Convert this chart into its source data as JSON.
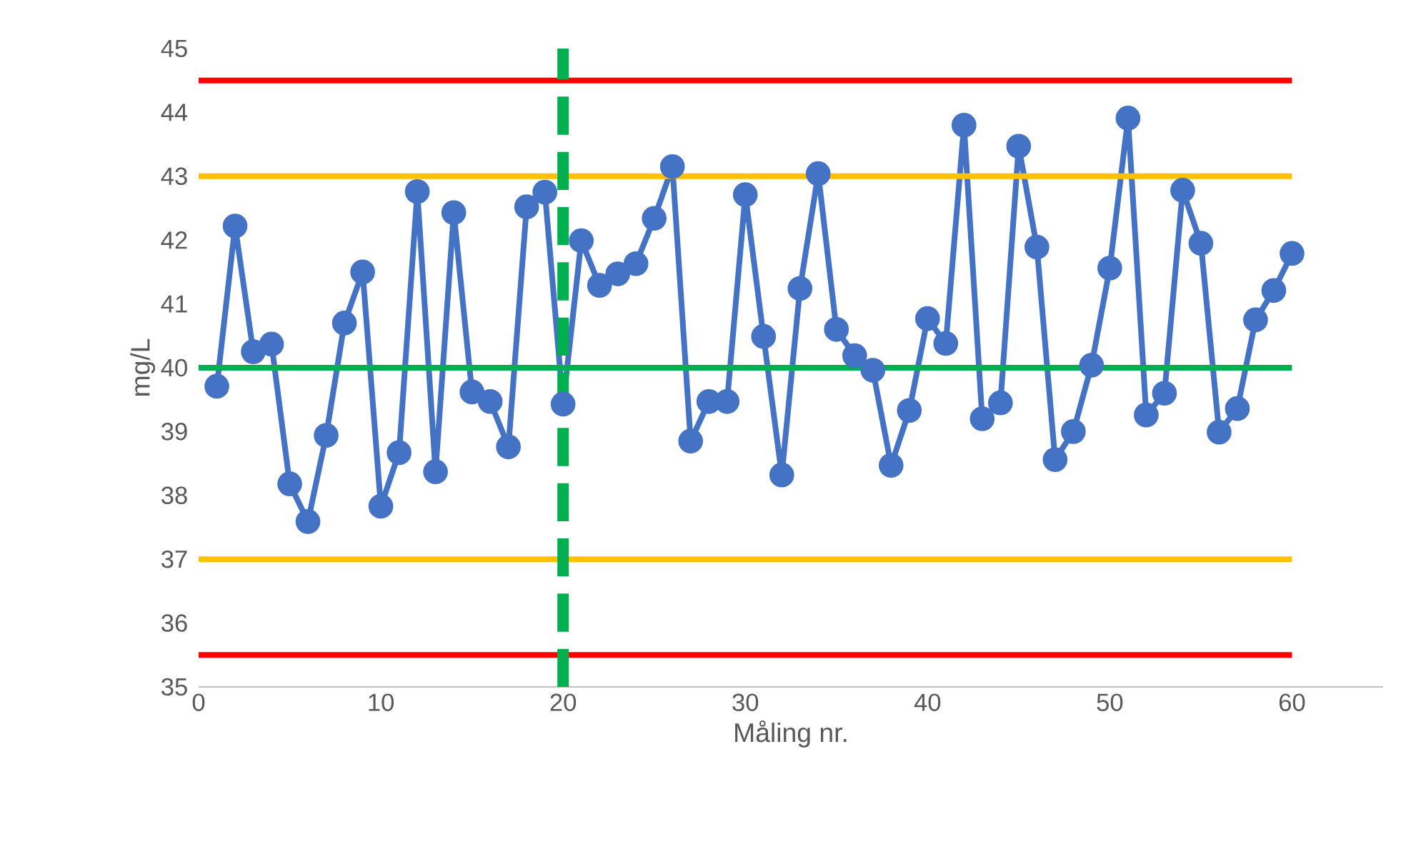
{
  "chart_data": {
    "type": "line",
    "xlabel": "Måling nr.",
    "ylabel": "mg/L",
    "xlim": [
      0,
      65
    ],
    "xticks": [
      0,
      10,
      20,
      30,
      40,
      50,
      60
    ],
    "ylim": [
      35,
      45
    ],
    "yticks": [
      35,
      36,
      37,
      38,
      39,
      40,
      41,
      42,
      43,
      44,
      45
    ],
    "grid": false,
    "marker": "circle",
    "line_style": "solid",
    "series": [
      {
        "color": "#4472c4",
        "x": [
          1,
          2,
          3,
          4,
          5,
          6,
          7,
          8,
          9,
          10,
          11,
          12,
          13,
          14,
          15,
          16,
          17,
          18,
          19,
          20,
          21,
          22,
          23,
          24,
          25,
          26,
          27,
          28,
          29,
          30,
          31,
          32,
          33,
          34,
          35,
          36,
          37,
          38,
          39,
          40,
          41,
          42,
          43,
          44,
          45,
          46,
          47,
          48,
          49,
          50,
          51,
          52,
          53,
          54,
          55,
          56,
          57,
          58,
          59,
          60
        ],
        "values": [
          39.71,
          42.22,
          40.25,
          40.37,
          38.18,
          37.59,
          38.94,
          40.7,
          41.5,
          37.83,
          38.67,
          42.76,
          38.37,
          42.43,
          39.62,
          39.47,
          38.76,
          42.52,
          42.75,
          39.43,
          41.99,
          41.29,
          41.47,
          41.63,
          42.34,
          43.15,
          38.85,
          39.47,
          39.47,
          42.71,
          40.49,
          38.32,
          41.24,
          43.04,
          40.6,
          40.19,
          39.96,
          38.47,
          39.33,
          40.77,
          40.38,
          43.8,
          39.2,
          39.45,
          43.47,
          41.89,
          38.56,
          39.0,
          40.04,
          41.56,
          43.91,
          39.26,
          39.6,
          42.78,
          41.95,
          38.99,
          39.36,
          40.75,
          41.21,
          41.79
        ]
      },
      {
        "type": "line",
        "marker": "none",
        "color": "#ff0000",
        "x": [
          0,
          60
        ],
        "values": [
          44.5,
          44.5
        ]
      },
      {
        "type": "line",
        "marker": "none",
        "color": "#ffc000",
        "x": [
          0,
          60
        ],
        "values": [
          43,
          43
        ]
      },
      {
        "type": "line",
        "marker": "none",
        "color": "#00b050",
        "x": [
          0,
          60
        ],
        "values": [
          40,
          40
        ]
      },
      {
        "type": "line",
        "marker": "none",
        "color": "#ffc000",
        "x": [
          0,
          60
        ],
        "values": [
          37,
          37
        ]
      },
      {
        "type": "line",
        "marker": "none",
        "color": "#ff0000",
        "x": [
          0,
          60
        ],
        "values": [
          35.5,
          35.5
        ]
      }
    ],
    "ref_lines": [
      {
        "axis": "x",
        "value": 20,
        "color": "#00b050",
        "line_style": "dashed"
      }
    ]
  }
}
